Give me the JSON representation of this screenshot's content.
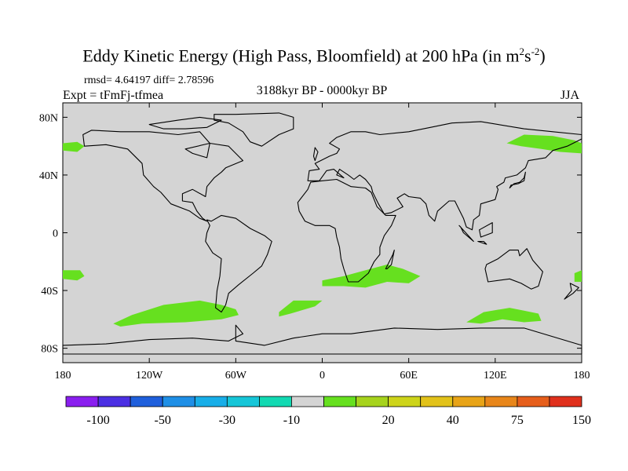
{
  "title": {
    "main": "Eddy Kinetic Energy (High Pass, Bloomfield) at 200 hPa (in m",
    "sup1": "2",
    "mid": "s",
    "sup2": "-2",
    "end": ")"
  },
  "stats": "rmsd= 4.64197 diff= 2.78596",
  "experiment": "Expt = tFmFj-tfmea",
  "period": "3188kyr BP - 0000kyr BP",
  "season": "JJA",
  "map": {
    "background_color": "#d4d4d4",
    "anomaly_color": "#66e01f",
    "lat_ticks": [
      "80N",
      "40N",
      "0",
      "40S",
      "80S"
    ],
    "lat_values": [
      80,
      40,
      0,
      -40,
      -80
    ],
    "lon_ticks": [
      "180",
      "120W",
      "60W",
      "0",
      "60E",
      "120E",
      "180"
    ],
    "lon_values": [
      -180,
      -120,
      -60,
      0,
      60,
      120,
      180
    ],
    "extent": {
      "lon": [
        -180,
        180
      ],
      "lat": [
        -90,
        90
      ]
    }
  },
  "colorbar": {
    "labels": [
      "-100",
      "-50",
      "-30",
      "-10",
      "20",
      "40",
      "75",
      "150"
    ],
    "colors": [
      "#8a1fef",
      "#4b2fe3",
      "#1f5fdc",
      "#1f8fe6",
      "#18aee8",
      "#16c6d8",
      "#12d9b2",
      "#d4d4d4",
      "#66e01f",
      "#a6d31c",
      "#cdd41a",
      "#e2c21a",
      "#e8a418",
      "#e8861a",
      "#e65e1b",
      "#e0301c"
    ]
  }
}
